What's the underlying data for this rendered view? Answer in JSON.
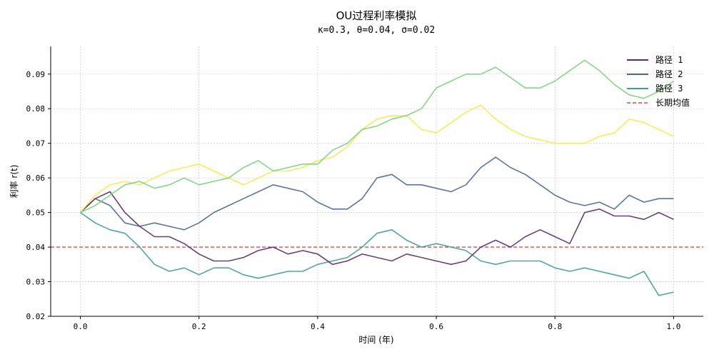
{
  "chart_data": {
    "type": "line",
    "title": "OU过程利率模拟",
    "subtitle": "κ=0.3, θ=0.04, σ=0.02",
    "xlabel": "时间 (年)",
    "ylabel": "利率 r(t)",
    "xlim": [
      -0.05,
      1.05
    ],
    "ylim": [
      0.02,
      0.098
    ],
    "xticks": [
      0.0,
      0.2,
      0.4,
      0.6,
      0.8,
      1.0
    ],
    "xtick_labels": [
      "0.0",
      "0.2",
      "0.4",
      "0.6",
      "0.8",
      "1.0"
    ],
    "yticks": [
      0.02,
      0.03,
      0.04,
      0.05,
      0.06,
      0.07,
      0.08,
      0.09
    ],
    "ytick_labels": [
      "0.02",
      "0.03",
      "0.04",
      "0.05",
      "0.06",
      "0.07",
      "0.08",
      "0.09"
    ],
    "grid": true,
    "legend_position": "top-right",
    "x": [
      0.0,
      0.025,
      0.05,
      0.075,
      0.1,
      0.125,
      0.15,
      0.175,
      0.2,
      0.225,
      0.25,
      0.275,
      0.3,
      0.325,
      0.35,
      0.375,
      0.4,
      0.425,
      0.45,
      0.475,
      0.5,
      0.525,
      0.55,
      0.575,
      0.6,
      0.625,
      0.65,
      0.675,
      0.7,
      0.725,
      0.75,
      0.775,
      0.8,
      0.825,
      0.85,
      0.875,
      0.9,
      0.925,
      0.95,
      0.975,
      1.0
    ],
    "series": [
      {
        "name": "路径 1",
        "color": "#5b2a6e",
        "values": [
          0.05,
          0.054,
          0.056,
          0.05,
          0.046,
          0.043,
          0.043,
          0.041,
          0.038,
          0.036,
          0.036,
          0.037,
          0.039,
          0.04,
          0.038,
          0.039,
          0.038,
          0.035,
          0.036,
          0.038,
          0.037,
          0.036,
          0.038,
          0.037,
          0.036,
          0.035,
          0.036,
          0.04,
          0.042,
          0.04,
          0.043,
          0.045,
          0.043,
          0.041,
          0.05,
          0.051,
          0.049,
          0.049,
          0.048,
          0.05,
          0.048
        ]
      },
      {
        "name": "路径 2",
        "color": "#4a6595",
        "values": [
          0.05,
          0.054,
          0.052,
          0.047,
          0.046,
          0.047,
          0.046,
          0.045,
          0.047,
          0.05,
          0.052,
          0.054,
          0.056,
          0.058,
          0.057,
          0.056,
          0.053,
          0.051,
          0.051,
          0.054,
          0.06,
          0.061,
          0.058,
          0.058,
          0.057,
          0.056,
          0.058,
          0.063,
          0.066,
          0.063,
          0.061,
          0.058,
          0.055,
          0.053,
          0.052,
          0.053,
          0.051,
          0.055,
          0.053,
          0.054,
          0.054
        ]
      },
      {
        "name": "路径 3",
        "color": "#3a9f94",
        "values": [
          0.05,
          0.047,
          0.045,
          0.044,
          0.04,
          0.035,
          0.033,
          0.034,
          0.032,
          0.034,
          0.034,
          0.032,
          0.031,
          0.032,
          0.033,
          0.033,
          0.035,
          0.036,
          0.037,
          0.04,
          0.044,
          0.045,
          0.042,
          0.04,
          0.041,
          0.04,
          0.039,
          0.036,
          0.035,
          0.036,
          0.036,
          0.036,
          0.034,
          0.033,
          0.034,
          0.033,
          0.032,
          0.031,
          0.033,
          0.026,
          0.027
        ]
      },
      {
        "name": "",
        "color": "#79d17a",
        "values": [
          0.05,
          0.052,
          0.055,
          0.058,
          0.059,
          0.057,
          0.058,
          0.06,
          0.058,
          0.059,
          0.06,
          0.063,
          0.065,
          0.062,
          0.063,
          0.064,
          0.064,
          0.068,
          0.07,
          0.074,
          0.075,
          0.077,
          0.078,
          0.08,
          0.086,
          0.088,
          0.09,
          0.09,
          0.092,
          0.089,
          0.086,
          0.086,
          0.088,
          0.091,
          0.094,
          0.091,
          0.087,
          0.084,
          0.083,
          0.085,
          0.088
        ]
      },
      {
        "name": "",
        "color": "#f5e94a",
        "values": [
          0.05,
          0.055,
          0.058,
          0.059,
          0.058,
          0.06,
          0.062,
          0.063,
          0.064,
          0.062,
          0.06,
          0.058,
          0.06,
          0.062,
          0.062,
          0.063,
          0.065,
          0.066,
          0.069,
          0.074,
          0.077,
          0.078,
          0.078,
          0.074,
          0.073,
          0.076,
          0.079,
          0.081,
          0.077,
          0.074,
          0.072,
          0.071,
          0.07,
          0.07,
          0.07,
          0.072,
          0.073,
          0.077,
          0.076,
          0.074,
          0.072
        ]
      }
    ],
    "reference_line": {
      "name": "长期均值",
      "value": 0.04,
      "color": "#e0201b"
    }
  }
}
